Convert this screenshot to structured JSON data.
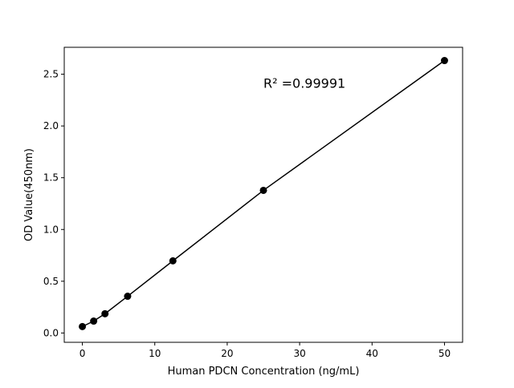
{
  "chart_data": {
    "type": "scatter",
    "title": "",
    "xlabel": "Human PDCN Concentration (ng/mL)",
    "ylabel": "OD Value(450nm)",
    "xlim": [
      -2.5,
      52.5
    ],
    "ylim": [
      -0.09,
      2.76
    ],
    "xticks": [
      0,
      10,
      20,
      30,
      40,
      50
    ],
    "xtick_labels": [
      "0",
      "10",
      "20",
      "30",
      "40",
      "50"
    ],
    "yticks": [
      0.0,
      0.5,
      1.0,
      1.5,
      2.0,
      2.5
    ],
    "ytick_labels": [
      "0.0",
      "0.5",
      "1.0",
      "1.5",
      "2.0",
      "2.5"
    ],
    "grid": false,
    "annotation": "R² =0.99991",
    "annotation_position": [
      25,
      2.37
    ],
    "series": [
      {
        "x": [
          0,
          1.5625,
          3.125,
          6.25,
          12.5,
          25,
          50
        ],
        "y": [
          0.062,
          0.115,
          0.186,
          0.355,
          0.697,
          1.378,
          2.632
        ],
        "marker": "circle",
        "line": true,
        "color": "#000000"
      }
    ]
  }
}
